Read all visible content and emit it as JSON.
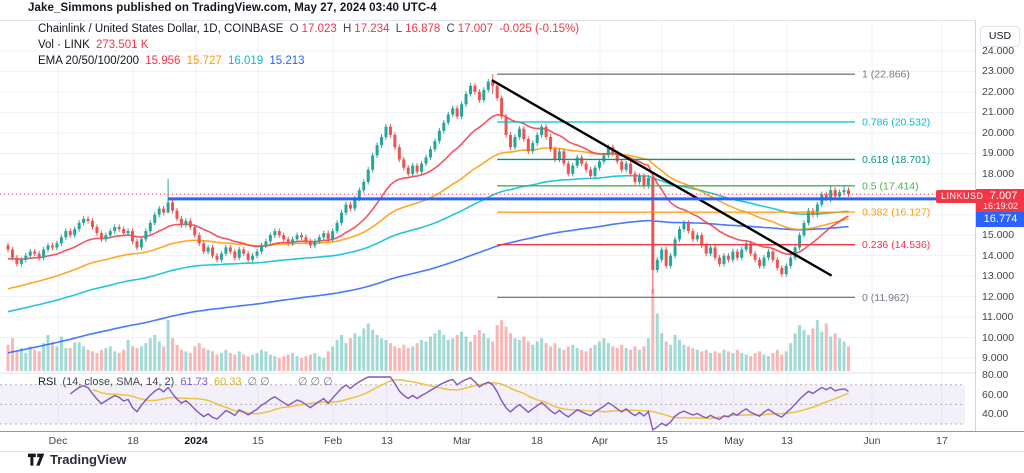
{
  "attribution": "Jake_Simmons published on TradingView.com, May 27, 2024 03:40 UTC-4",
  "header": {
    "symbol": "Chainlink / United States Dollar, 1D, COINBASE",
    "ohlc": {
      "o_l": "O",
      "o": "17.023",
      "h_l": "H",
      "h": "17.234",
      "l_l": "L",
      "l": "16.878",
      "c_l": "C",
      "c": "17.007",
      "change": "-0.025 (-0.15%)"
    },
    "vol_label": "Vol · LINK",
    "vol_value": "273.501 K",
    "ema_label": "EMA 20/50/100/200",
    "ema1": "15.956",
    "ema2": "15.727",
    "ema3": "16.019",
    "ema4": "15.213"
  },
  "rsi_legend": {
    "label": "RSI",
    "params": "(14, close, SMA, 14, 2)",
    "v1": "61.73",
    "v2": "60.33",
    "empty1": "∅ ∅",
    "empty2": "∅ ∅ ∅"
  },
  "price_axis": {
    "currency": "USD",
    "ticks": [
      {
        "label": "24.000",
        "price": 24
      },
      {
        "label": "23.000",
        "price": 23
      },
      {
        "label": "22.000",
        "price": 22
      },
      {
        "label": "21.000",
        "price": 21
      },
      {
        "label": "20.000",
        "price": 20
      },
      {
        "label": "19.000",
        "price": 19
      },
      {
        "label": "18.000",
        "price": 18
      },
      {
        "label": "15.000",
        "price": 15
      },
      {
        "label": "14.000",
        "price": 14
      },
      {
        "label": "13.000",
        "price": 13
      },
      {
        "label": "12.000",
        "price": 12
      },
      {
        "label": "11.000",
        "price": 11
      },
      {
        "label": "10.000",
        "price": 10
      },
      {
        "label": "9.000",
        "price": 9
      }
    ],
    "rsi_ticks": [
      {
        "label": "80.00",
        "v": 80
      },
      {
        "label": "60.00",
        "v": 60
      },
      {
        "label": "40.00",
        "v": 40
      }
    ],
    "price_tag": {
      "symbol": "LINKUSD",
      "price": "17.007",
      "countdown": "16:19:02"
    },
    "ray_tag": {
      "price": "16.774"
    }
  },
  "time_axis": {
    "ticks": [
      {
        "label": "Dec",
        "x": 58
      },
      {
        "label": "18",
        "x": 133
      },
      {
        "label": "2024",
        "x": 196,
        "bold": true
      },
      {
        "label": "15",
        "x": 258
      },
      {
        "label": "Feb",
        "x": 333
      },
      {
        "label": "13",
        "x": 387
      },
      {
        "label": "Mar",
        "x": 462
      },
      {
        "label": "18",
        "x": 537
      },
      {
        "label": "Apr",
        "x": 600
      },
      {
        "label": "15",
        "x": 662
      },
      {
        "label": "May",
        "x": 734
      },
      {
        "label": "13",
        "x": 787
      },
      {
        "label": "Jun",
        "x": 872
      },
      {
        "label": "17",
        "x": 942
      }
    ]
  },
  "logo": {
    "text": "TradingView"
  },
  "colors": {
    "up": "#26a69a",
    "down": "#ef5350",
    "vol_up": "rgba(38,166,154,0.42)",
    "vol_down": "rgba(239,83,80,0.42)",
    "ema20": "#f23645",
    "ema50": "#ff9800",
    "ema100": "#00bcd4",
    "ema200": "#2962ff",
    "grid": "#eef1f8",
    "trendline": "#000000",
    "ray": "#2962ff",
    "price_line": "#f23645",
    "rsi_line": "#7e57c2",
    "rsi_sma": "#edc240",
    "rsi_band": "rgba(126,87,194,0.09)",
    "rsi_level": "#787b86",
    "tag_red": "#f23645",
    "tag_blue": "#2962ff"
  },
  "chart_data": {
    "type": "candlestick",
    "title": "Chainlink / United States Dollar, 1D, COINBASE",
    "period_shown": "Nov 2023 - May 27 2024 (daily)",
    "ylim": [
      9,
      24
    ],
    "price_grid_step": 1,
    "closes": [
      14.3,
      13.9,
      13.6,
      13.8,
      14.0,
      14.2,
      14.1,
      13.9,
      14.3,
      14.5,
      14.4,
      14.6,
      14.9,
      15.2,
      15.0,
      15.3,
      15.6,
      15.8,
      15.7,
      15.4,
      15.1,
      14.8,
      15.0,
      15.2,
      15.4,
      15.3,
      15.1,
      15.2,
      14.7,
      14.4,
      14.8,
      15.2,
      15.6,
      16.0,
      16.3,
      16.1,
      16.6,
      16.2,
      15.8,
      15.5,
      15.7,
      15.4,
      15.0,
      14.6,
      14.2,
      14.4,
      14.0,
      13.8,
      14.1,
      14.4,
      14.2,
      13.9,
      14.3,
      14.1,
      13.8,
      14.0,
      14.2,
      14.5,
      14.7,
      15.0,
      15.2,
      15.0,
      14.8,
      14.6,
      14.8,
      15.0,
      14.9,
      14.7,
      14.5,
      14.7,
      14.9,
      15.1,
      14.8,
      15.2,
      15.6,
      16.1,
      16.5,
      16.3,
      16.8,
      17.2,
      17.6,
      18.2,
      18.9,
      19.4,
      19.8,
      20.3,
      19.9,
      19.3,
      18.7,
      18.3,
      18.0,
      18.4,
      18.1,
      18.5,
      18.8,
      19.2,
      19.6,
      20.1,
      20.5,
      20.9,
      21.2,
      20.8,
      21.4,
      21.9,
      22.3,
      22.0,
      21.6,
      22.1,
      22.5,
      22.3,
      21.7,
      20.8,
      19.9,
      19.3,
      19.8,
      20.2,
      19.7,
      19.1,
      19.5,
      19.9,
      20.3,
      19.8,
      19.2,
      18.7,
      19.1,
      18.5,
      18.0,
      18.4,
      18.8,
      18.5,
      18.2,
      17.9,
      18.3,
      18.6,
      18.9,
      19.3,
      19.0,
      18.6,
      18.2,
      18.5,
      18.0,
      17.6,
      17.9,
      17.4,
      17.8,
      13.3,
      13.8,
      14.3,
      13.5,
      14.0,
      14.8,
      15.3,
      15.6,
      15.2,
      14.8,
      15.0,
      14.5,
      14.1,
      14.4,
      13.9,
      13.6,
      14.0,
      13.8,
      14.2,
      13.9,
      14.3,
      14.6,
      14.1,
      13.8,
      13.5,
      13.9,
      14.2,
      13.8,
      13.4,
      13.1,
      13.5,
      13.9,
      14.4,
      15.0,
      15.6,
      16.2,
      16.0,
      16.5,
      17.0,
      16.8,
      17.2,
      16.9,
      17.1,
      17.2,
      17.007
    ],
    "volumes": [
      32,
      40,
      25,
      28,
      22,
      30,
      26,
      24,
      34,
      44,
      36,
      30,
      42,
      28,
      28,
      35,
      35,
      30,
      26,
      24,
      22,
      26,
      28,
      30,
      24,
      22,
      26,
      38,
      30,
      28,
      30,
      34,
      40,
      44,
      36,
      30,
      62,
      40,
      32,
      26,
      24,
      22,
      30,
      34,
      28,
      26,
      24,
      20,
      22,
      26,
      22,
      20,
      24,
      20,
      18,
      20,
      22,
      26,
      24,
      20,
      18,
      16,
      18,
      20,
      22,
      18,
      16,
      18,
      20,
      22,
      18,
      16,
      24,
      30,
      38,
      44,
      34,
      40,
      46,
      42,
      52,
      58,
      50,
      44,
      40,
      38,
      34,
      30,
      28,
      32,
      28,
      30,
      34,
      38,
      36,
      42,
      46,
      50,
      44,
      38,
      40,
      44,
      48,
      42,
      36,
      44,
      50,
      46,
      40,
      36,
      56,
      62,
      54,
      46,
      40,
      38,
      42,
      36,
      32,
      36,
      40,
      34,
      30,
      34,
      28,
      26,
      30,
      32,
      28,
      26,
      24,
      28,
      32,
      36,
      40,
      34,
      30,
      28,
      32,
      28,
      26,
      30,
      26,
      30,
      40,
      100,
      70,
      46,
      36,
      32,
      44,
      38,
      32,
      30,
      28,
      26,
      24,
      26,
      22,
      24,
      22,
      26,
      24,
      22,
      26,
      22,
      20,
      18,
      22,
      24,
      20,
      18,
      22,
      26,
      20,
      24,
      34,
      46,
      56,
      50,
      44,
      52,
      62,
      48,
      58,
      42,
      46,
      40,
      36,
      30
    ],
    "wick_overrides": {
      "36": [
        17.74,
        16.1
      ],
      "109": [
        22.87,
        21.9
      ],
      "145": [
        17.9,
        12.15
      ],
      "185": [
        17.45,
        16.6
      ],
      "188": [
        17.42,
        16.95
      ]
    },
    "default_wick": 0.13,
    "emas": {
      "periods": [
        20,
        50,
        100,
        200
      ],
      "seeds": [
        13.8,
        12.3,
        11.2,
        9.2
      ],
      "legend_values": [
        15.956,
        15.727,
        16.019,
        15.213
      ]
    },
    "fib_levels": [
      {
        "ratio": "1",
        "value": "22.866",
        "price": 22.866,
        "color": "#787b86"
      },
      {
        "ratio": "0.786",
        "value": "20.532",
        "price": 20.532,
        "color": "#00bcd4"
      },
      {
        "ratio": "0.618",
        "value": "18.701",
        "price": 18.701,
        "color": "#009688"
      },
      {
        "ratio": "0.5",
        "value": "17.414",
        "price": 17.414,
        "color": "#4caf50"
      },
      {
        "ratio": "0.382",
        "value": "16.127",
        "price": 16.127,
        "color": "#ff9800"
      },
      {
        "ratio": "0.236",
        "value": "14.536",
        "price": 14.536,
        "color": "#f23645"
      },
      {
        "ratio": "0",
        "value": "11.962",
        "price": 11.962,
        "color": "#787b86"
      }
    ],
    "fib_start_index": 110,
    "trendline": {
      "from_index": 109,
      "from_price": 22.55,
      "to_index": 185,
      "to_price": 13.05
    },
    "ray": {
      "start_index": 36,
      "price": 16.774
    },
    "price_line": {
      "price": 17.007
    },
    "rsi": {
      "period": 14,
      "smoothing": "SMA",
      "smoothing_period": 14,
      "levels": [
        70,
        50,
        30
      ],
      "last": 61.73,
      "sma_last": 60.33
    }
  }
}
